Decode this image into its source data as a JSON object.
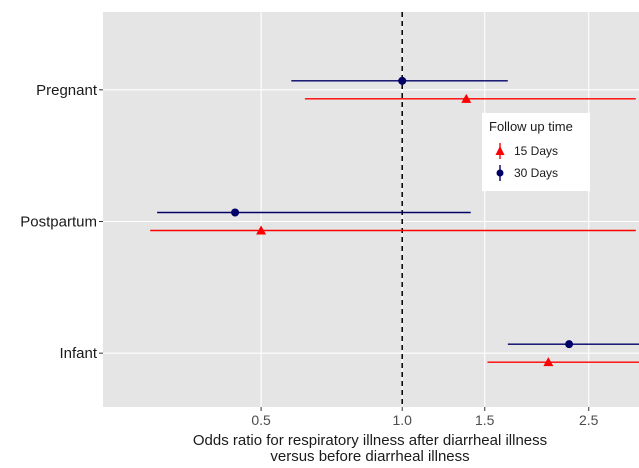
{
  "chart_data": {
    "type": "forest",
    "xlabel_line1": "Odds ratio for respiratory illness after diarrheal illness",
    "xlabel_line2": "versus before diarrheal illness",
    "ylabel": "",
    "x_ticks": [
      {
        "value": 0.5,
        "label": "0.5"
      },
      {
        "value": 1.0,
        "label": "1.0"
      },
      {
        "value": 1.5,
        "label": "1.5"
      },
      {
        "value": 2.5,
        "label": "2.5"
      }
    ],
    "xlim": [
      0.23,
      3.2
    ],
    "reference_line": 1.0,
    "categories": [
      "Pregnant",
      "Postpartum",
      "Infant"
    ],
    "legend": {
      "title": "Follow up time",
      "position": "right",
      "entries": [
        {
          "label": "15 Days",
          "color": "#ff0000",
          "shape": "triangle"
        },
        {
          "label": "30 Days",
          "color": "#000066",
          "shape": "circle"
        }
      ]
    },
    "series": [
      {
        "name": "15 Days",
        "color": "#ff0000",
        "shape": "triangle",
        "points": [
          {
            "category": "Pregnant",
            "estimate": 1.37,
            "lower": 0.62,
            "upper": 3.15
          },
          {
            "category": "Postpartum",
            "estimate": 0.5,
            "lower": 0.29,
            "upper": 3.15
          },
          {
            "category": "Infant",
            "estimate": 2.05,
            "lower": 1.52,
            "upper": 3.33
          }
        ]
      },
      {
        "name": "30 Days",
        "color": "#000066",
        "shape": "circle",
        "points": [
          {
            "category": "Pregnant",
            "estimate": 1.0,
            "lower": 0.58,
            "upper": 1.68
          },
          {
            "category": "Postpartum",
            "estimate": 0.44,
            "lower": 0.3,
            "upper": 1.4
          },
          {
            "category": "Infant",
            "estimate": 2.27,
            "lower": 1.68,
            "upper": 3.3
          }
        ]
      }
    ]
  }
}
